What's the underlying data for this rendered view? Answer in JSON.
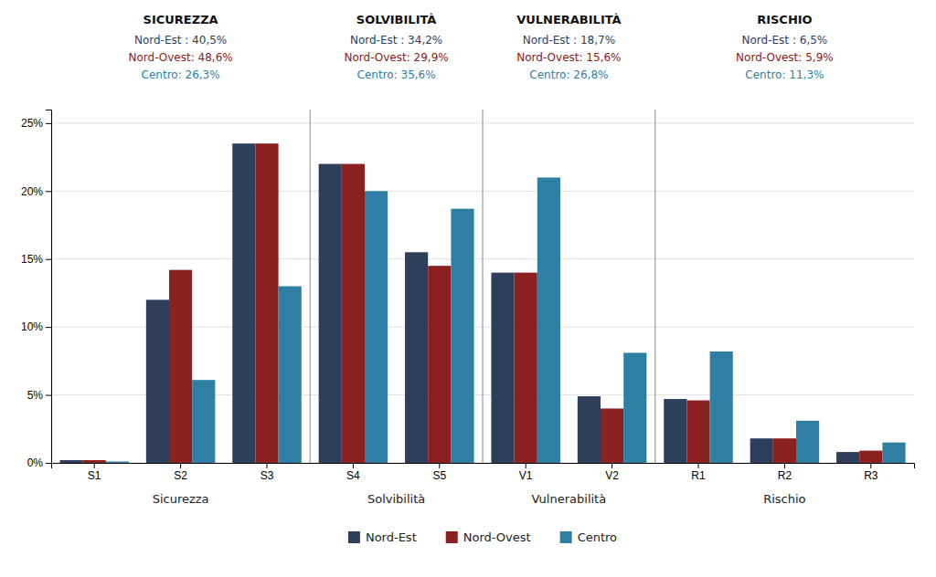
{
  "chart_data": {
    "type": "bar",
    "categories": [
      "S1",
      "S2",
      "S3",
      "S4",
      "S5",
      "V1",
      "V2",
      "R1",
      "R2",
      "R3"
    ],
    "series": [
      {
        "name": "Nord-Est",
        "color": "#2e3f5c",
        "values": [
          0.2,
          12.0,
          23.5,
          22.0,
          15.5,
          14.0,
          4.9,
          4.7,
          1.8,
          0.8
        ]
      },
      {
        "name": "Nord-Ovest",
        "color": "#8b2020",
        "values": [
          0.2,
          14.2,
          23.5,
          22.0,
          14.5,
          14.0,
          4.0,
          4.6,
          1.8,
          0.9
        ]
      },
      {
        "name": "Centro",
        "color": "#2e7fa3",
        "values": [
          0.1,
          6.1,
          13.0,
          20.0,
          18.7,
          21.0,
          8.1,
          8.2,
          3.1,
          1.5
        ]
      }
    ],
    "groups": [
      {
        "label": "Sicurezza",
        "categories": [
          "S1",
          "S2",
          "S3"
        ]
      },
      {
        "label": "Solvibilità",
        "categories": [
          "S4",
          "S5"
        ]
      },
      {
        "label": "Vulnerabilità",
        "categories": [
          "V1",
          "V2"
        ]
      },
      {
        "label": "Rischio",
        "categories": [
          "R1",
          "R2",
          "R3"
        ]
      }
    ],
    "annotations": [
      {
        "title": "SICUREZZA",
        "lines": [
          "Nord-Est : 40,5%",
          "Nord-Ovest: 48,6%",
          "Centro: 26,3%"
        ]
      },
      {
        "title": "SOLVIBILITÀ",
        "lines": [
          "Nord-Est : 34,2%",
          "Nord-Ovest: 29,9%",
          "Centro: 35,6%"
        ]
      },
      {
        "title": "VULNERABILITÀ",
        "lines": [
          "Nord-Est : 18,7%",
          "Nord-Ovest: 15,6%",
          "Centro: 26,8%"
        ]
      },
      {
        "title": "RISCHIO",
        "lines": [
          "Nord-Est : 6,5%",
          "Nord-Ovest: 5,9%",
          "Centro: 11,3%"
        ]
      }
    ],
    "ylim": [
      0,
      26
    ],
    "yticks": [
      {
        "value": 0,
        "label": "0%"
      },
      {
        "value": 5,
        "label": "5%"
      },
      {
        "value": 10,
        "label": "10%"
      },
      {
        "value": 15,
        "label": "15%"
      },
      {
        "value": 20,
        "label": "20%"
      },
      {
        "value": 25,
        "label": "25%"
      }
    ],
    "grid": true,
    "legend": "bottom"
  }
}
